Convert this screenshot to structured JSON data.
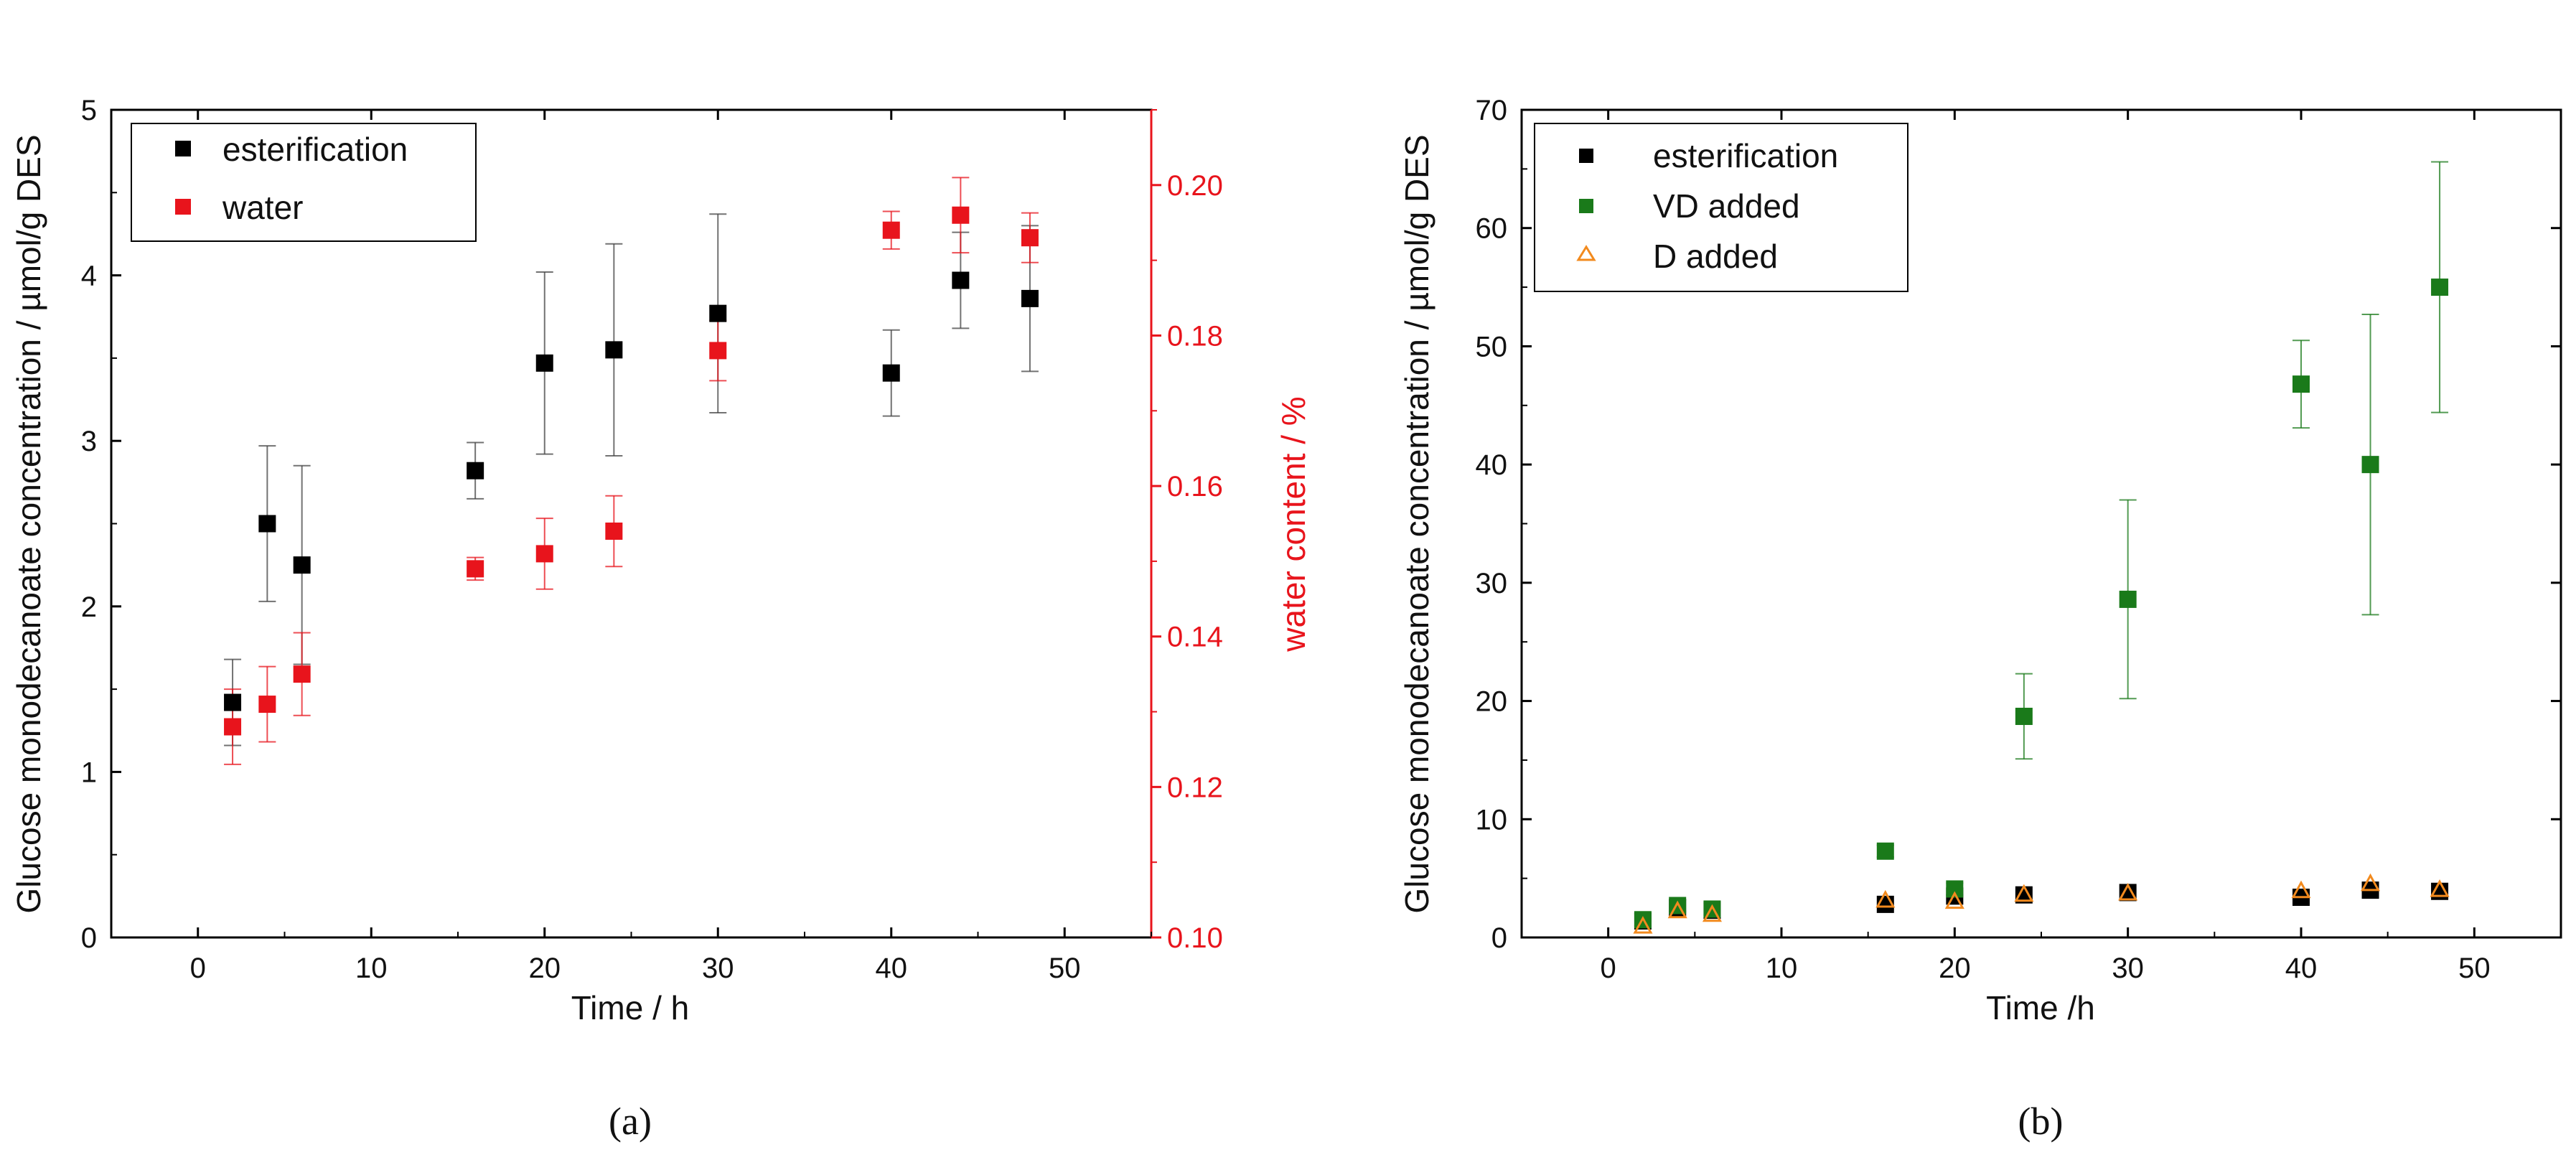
{
  "chart_data": [
    {
      "type": "scatter",
      "panel_label": "(a)",
      "xlabel": "Time / h",
      "ylabel": "Glucose monodecanoate concentration / µmol/g DES",
      "y2label": "water content / %",
      "xlim": [
        -5,
        55
      ],
      "ylim": [
        0,
        5
      ],
      "y2lim": [
        0.1,
        0.21
      ],
      "x_ticks": [
        0,
        10,
        20,
        30,
        40,
        50
      ],
      "y_ticks": [
        0,
        1,
        2,
        3,
        4,
        5
      ],
      "y2_ticks": [
        0.1,
        0.12,
        0.14,
        0.16,
        0.18,
        0.2
      ],
      "y2_tick_labels": [
        "0.10",
        "0.12",
        "0.14",
        "0.16",
        "0.18",
        "0.20"
      ],
      "legend_position": "top-left",
      "series": [
        {
          "name": "esterification",
          "axis": "left",
          "color": "#000000",
          "marker": "square",
          "points": [
            {
              "x": 2,
              "y": 1.42,
              "err": 0.26
            },
            {
              "x": 4,
              "y": 2.5,
              "err": 0.47
            },
            {
              "x": 6,
              "y": 2.25,
              "err": 0.6
            },
            {
              "x": 16,
              "y": 2.82,
              "err": 0.17
            },
            {
              "x": 20,
              "y": 3.47,
              "err": 0.55
            },
            {
              "x": 24,
              "y": 3.55,
              "err": 0.64
            },
            {
              "x": 30,
              "y": 3.77,
              "err": 0.6
            },
            {
              "x": 40,
              "y": 3.41,
              "err": 0.26
            },
            {
              "x": 44,
              "y": 3.97,
              "err": 0.29
            },
            {
              "x": 48,
              "y": 3.86,
              "err": 0.44
            }
          ]
        },
        {
          "name": "water",
          "axis": "right",
          "color": "#e8141c",
          "marker": "square",
          "points": [
            {
              "x": 2,
              "y": 0.128,
              "err": 0.005
            },
            {
              "x": 4,
              "y": 0.131,
              "err": 0.005
            },
            {
              "x": 6,
              "y": 0.135,
              "err": 0.0055
            },
            {
              "x": 16,
              "y": 0.149,
              "err": 0.0015
            },
            {
              "x": 20,
              "y": 0.151,
              "err": 0.0047
            },
            {
              "x": 24,
              "y": 0.154,
              "err": 0.0047
            },
            {
              "x": 30,
              "y": 0.178,
              "err": 0.004
            },
            {
              "x": 40,
              "y": 0.194,
              "err": 0.0025
            },
            {
              "x": 44,
              "y": 0.196,
              "err": 0.005
            },
            {
              "x": 48,
              "y": 0.193,
              "err": 0.0033
            }
          ]
        }
      ]
    },
    {
      "type": "scatter",
      "panel_label": "(b)",
      "xlabel": "Time /h",
      "ylabel": "Glucose monodecanoate concentration / µmol/g DES",
      "xlim": [
        -5,
        55
      ],
      "ylim": [
        0,
        70
      ],
      "x_ticks": [
        0,
        10,
        20,
        30,
        40,
        50
      ],
      "y_ticks": [
        0,
        10,
        20,
        30,
        40,
        50,
        60,
        70
      ],
      "legend_position": "top-left",
      "series": [
        {
          "name": "esterification",
          "color": "#000000",
          "marker": "square",
          "points": [
            {
              "x": 2,
              "y": 1.4
            },
            {
              "x": 4,
              "y": 2.5
            },
            {
              "x": 6,
              "y": 2.3
            },
            {
              "x": 16,
              "y": 2.8
            },
            {
              "x": 20,
              "y": 3.5
            },
            {
              "x": 24,
              "y": 3.6
            },
            {
              "x": 30,
              "y": 3.8
            },
            {
              "x": 40,
              "y": 3.4
            },
            {
              "x": 44,
              "y": 4.0
            },
            {
              "x": 48,
              "y": 3.9
            }
          ]
        },
        {
          "name": "VD added",
          "color": "#1a7a1a",
          "marker": "square",
          "points": [
            {
              "x": 2,
              "y": 1.5,
              "err": 0.5
            },
            {
              "x": 4,
              "y": 2.7,
              "err": 0.5
            },
            {
              "x": 6,
              "y": 2.4,
              "err": 0.5
            },
            {
              "x": 16,
              "y": 7.3,
              "err": 0.5
            },
            {
              "x": 20,
              "y": 4.1,
              "err": 0.5
            },
            {
              "x": 24,
              "y": 18.7,
              "err": 3.6
            },
            {
              "x": 30,
              "y": 28.6,
              "err": 8.4
            },
            {
              "x": 40,
              "y": 46.8,
              "err": 3.7
            },
            {
              "x": 44,
              "y": 40.0,
              "err": 12.7
            },
            {
              "x": 48,
              "y": 55.0,
              "err": 10.6
            }
          ]
        },
        {
          "name": "D added",
          "color": "#f28a1e",
          "marker": "triangle-open",
          "points": [
            {
              "x": 2,
              "y": 0.9
            },
            {
              "x": 4,
              "y": 2.2
            },
            {
              "x": 6,
              "y": 1.9
            },
            {
              "x": 16,
              "y": 3.1
            },
            {
              "x": 20,
              "y": 3.0
            },
            {
              "x": 24,
              "y": 3.6
            },
            {
              "x": 30,
              "y": 3.7
            },
            {
              "x": 40,
              "y": 3.9
            },
            {
              "x": 44,
              "y": 4.5
            },
            {
              "x": 48,
              "y": 4.0
            }
          ]
        }
      ]
    }
  ]
}
